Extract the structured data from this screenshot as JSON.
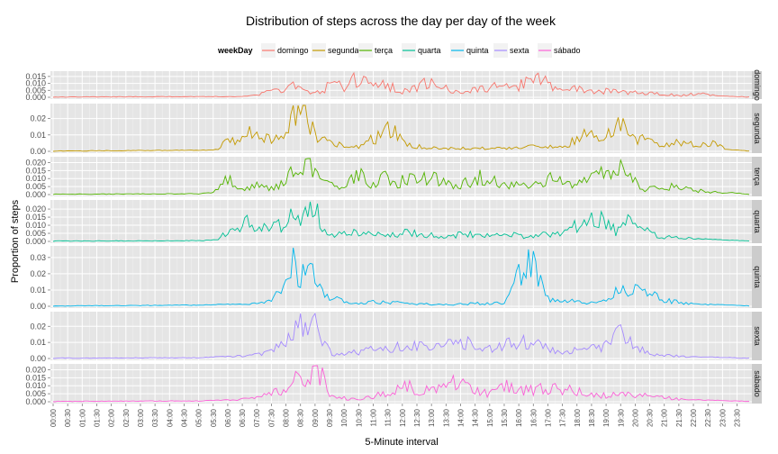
{
  "chart_data": {
    "type": "line",
    "title": "Distribution of steps across the day per day of the week",
    "xlabel": "5-Minute interval",
    "ylabel": "Proportion of steps",
    "legend": {
      "title": "weekDay",
      "placement": "top"
    },
    "xlim": [
      0,
      287
    ],
    "x_tick_labels": [
      "00:00",
      "00:30",
      "01:00",
      "01:30",
      "02:00",
      "02:30",
      "03:00",
      "03:30",
      "04:00",
      "04:30",
      "05:00",
      "05:30",
      "06:00",
      "06:30",
      "07:00",
      "07:30",
      "08:00",
      "08:30",
      "09:00",
      "09:30",
      "10:00",
      "10:30",
      "11:00",
      "11:30",
      "12:00",
      "12:30",
      "13:00",
      "13:30",
      "14:00",
      "14:30",
      "15:00",
      "15:30",
      "16:00",
      "16:30",
      "17:00",
      "17:30",
      "18:00",
      "18:30",
      "19:00",
      "19:30",
      "20:00",
      "20:30",
      "21:00",
      "21:30",
      "22:00",
      "22:30",
      "23:00",
      "23:30"
    ],
    "grid": true,
    "series": [
      {
        "name": "domingo",
        "color": "#F8766D",
        "ylim": [
          0,
          0.0175
        ],
        "y_ticks": [
          0,
          0.005,
          0.01,
          0.015
        ],
        "y_tick_labels": [
          "0.000",
          "0.005",
          "0.010",
          "0.015"
        ],
        "peaks": [
          [
            0,
            0
          ],
          [
            60,
            0.0003
          ],
          [
            78,
            0.0003
          ],
          [
            85,
            0.002
          ],
          [
            92,
            0.006
          ],
          [
            96,
            0.008
          ],
          [
            100,
            0.011
          ],
          [
            104,
            0.004
          ],
          [
            108,
            0.003
          ],
          [
            113,
            0.008
          ],
          [
            117,
            0.013
          ],
          [
            120,
            0.009
          ],
          [
            123,
            0.015
          ],
          [
            128,
            0.012
          ],
          [
            133,
            0.008
          ],
          [
            138,
            0.01
          ],
          [
            144,
            0.004
          ],
          [
            148,
            0.007
          ],
          [
            154,
            0.011
          ],
          [
            160,
            0.009
          ],
          [
            166,
            0.004
          ],
          [
            174,
            0.006
          ],
          [
            182,
            0.008
          ],
          [
            190,
            0.007
          ],
          [
            196,
            0.013
          ],
          [
            200,
            0.015
          ],
          [
            205,
            0.009
          ],
          [
            210,
            0.006
          ],
          [
            216,
            0.008
          ],
          [
            222,
            0.004
          ],
          [
            228,
            0.005
          ],
          [
            236,
            0.004
          ],
          [
            244,
            0.003
          ],
          [
            252,
            0.003
          ],
          [
            258,
            0.001
          ],
          [
            266,
            0.003
          ],
          [
            274,
            0.001
          ],
          [
            287,
            0
          ]
        ]
      },
      {
        "name": "segunda",
        "color": "#C49A00",
        "ylim": [
          0,
          0.028
        ],
        "y_ticks": [
          0,
          0.01,
          0.02
        ],
        "y_tick_labels": [
          "0.00",
          "0.01",
          "0.02"
        ],
        "peaks": [
          [
            0,
            0
          ],
          [
            62,
            0.0005
          ],
          [
            68,
            0.001
          ],
          [
            72,
            0.01
          ],
          [
            76,
            0.006
          ],
          [
            80,
            0.012
          ],
          [
            86,
            0.01
          ],
          [
            90,
            0.007
          ],
          [
            94,
            0.012
          ],
          [
            96,
            0.016
          ],
          [
            98,
            0.02
          ],
          [
            101,
            0.026
          ],
          [
            104,
            0.027
          ],
          [
            107,
            0.015
          ],
          [
            110,
            0.006
          ],
          [
            114,
            0.009
          ],
          [
            120,
            0.002
          ],
          [
            126,
            0.003
          ],
          [
            134,
            0.01
          ],
          [
            138,
            0.019
          ],
          [
            142,
            0.012
          ],
          [
            146,
            0.004
          ],
          [
            152,
            0.003
          ],
          [
            160,
            0.002
          ],
          [
            172,
            0.002
          ],
          [
            186,
            0.002
          ],
          [
            198,
            0.003
          ],
          [
            210,
            0.003
          ],
          [
            216,
            0.008
          ],
          [
            220,
            0.011
          ],
          [
            224,
            0.009
          ],
          [
            230,
            0.013
          ],
          [
            234,
            0.019
          ],
          [
            238,
            0.012
          ],
          [
            242,
            0.008
          ],
          [
            250,
            0.005
          ],
          [
            258,
            0.006
          ],
          [
            266,
            0.004
          ],
          [
            272,
            0.006
          ],
          [
            278,
            0.001
          ],
          [
            287,
            0
          ]
        ]
      },
      {
        "name": "terça",
        "color": "#53B400",
        "ylim": [
          0,
          0.0225
        ],
        "y_ticks": [
          0,
          0.005,
          0.01,
          0.015,
          0.02
        ],
        "y_tick_labels": [
          "0.000",
          "0.005",
          "0.010",
          "0.015",
          "0.020"
        ],
        "peaks": [
          [
            0,
            0
          ],
          [
            60,
            0.0003
          ],
          [
            66,
            0.001
          ],
          [
            70,
            0.01
          ],
          [
            74,
            0.01
          ],
          [
            78,
            0.004
          ],
          [
            84,
            0.006
          ],
          [
            90,
            0.004
          ],
          [
            96,
            0.01
          ],
          [
            100,
            0.018
          ],
          [
            104,
            0.02
          ],
          [
            107,
            0.022
          ],
          [
            110,
            0.012
          ],
          [
            114,
            0.006
          ],
          [
            120,
            0.004
          ],
          [
            126,
            0.015
          ],
          [
            130,
            0.005
          ],
          [
            138,
            0.013
          ],
          [
            142,
            0.008
          ],
          [
            150,
            0.014
          ],
          [
            158,
            0.01
          ],
          [
            166,
            0.006
          ],
          [
            176,
            0.012
          ],
          [
            184,
            0.008
          ],
          [
            196,
            0.006
          ],
          [
            206,
            0.011
          ],
          [
            214,
            0.006
          ],
          [
            222,
            0.011
          ],
          [
            228,
            0.014
          ],
          [
            234,
            0.017
          ],
          [
            238,
            0.01
          ],
          [
            244,
            0.004
          ],
          [
            252,
            0.006
          ],
          [
            260,
            0.004
          ],
          [
            270,
            0.002
          ],
          [
            280,
            0.001
          ],
          [
            287,
            0
          ]
        ]
      },
      {
        "name": "quarta",
        "color": "#00C094",
        "ylim": [
          0,
          0.0245
        ],
        "y_ticks": [
          0,
          0.005,
          0.01,
          0.015,
          0.02
        ],
        "y_tick_labels": [
          "0.000",
          "0.005",
          "0.010",
          "0.015",
          "0.020"
        ],
        "peaks": [
          [
            0,
            0
          ],
          [
            62,
            0.0003
          ],
          [
            68,
            0.001
          ],
          [
            72,
            0.008
          ],
          [
            76,
            0.011
          ],
          [
            82,
            0.013
          ],
          [
            88,
            0.008
          ],
          [
            94,
            0.012
          ],
          [
            98,
            0.015
          ],
          [
            102,
            0.016
          ],
          [
            105,
            0.023
          ],
          [
            108,
            0.022
          ],
          [
            111,
            0.012
          ],
          [
            114,
            0.004
          ],
          [
            120,
            0.007
          ],
          [
            128,
            0.006
          ],
          [
            136,
            0.005
          ],
          [
            146,
            0.006
          ],
          [
            160,
            0.004
          ],
          [
            176,
            0.005
          ],
          [
            186,
            0.005
          ],
          [
            196,
            0.003
          ],
          [
            206,
            0.006
          ],
          [
            214,
            0.009
          ],
          [
            218,
            0.012
          ],
          [
            224,
            0.017
          ],
          [
            228,
            0.016
          ],
          [
            232,
            0.006
          ],
          [
            238,
            0.015
          ],
          [
            244,
            0.008
          ],
          [
            250,
            0.003
          ],
          [
            262,
            0.002
          ],
          [
            272,
            0.001
          ],
          [
            287,
            0
          ]
        ]
      },
      {
        "name": "quinta",
        "color": "#00B6EB",
        "ylim": [
          0,
          0.036
        ],
        "y_ticks": [
          0,
          0.01,
          0.02,
          0.03
        ],
        "y_tick_labels": [
          "0.00",
          "0.01",
          "0.02",
          "0.03"
        ],
        "peaks": [
          [
            0,
            0
          ],
          [
            60,
            0.0005
          ],
          [
            70,
            0.001
          ],
          [
            80,
            0.001
          ],
          [
            88,
            0.003
          ],
          [
            94,
            0.01
          ],
          [
            97,
            0.033
          ],
          [
            100,
            0.028
          ],
          [
            104,
            0.02
          ],
          [
            107,
            0.03
          ],
          [
            110,
            0.012
          ],
          [
            114,
            0.006
          ],
          [
            122,
            0.002
          ],
          [
            132,
            0.003
          ],
          [
            146,
            0.002
          ],
          [
            160,
            0.001
          ],
          [
            176,
            0.002
          ],
          [
            186,
            0.002
          ],
          [
            194,
            0.025
          ],
          [
            197,
            0.033
          ],
          [
            200,
            0.022
          ],
          [
            204,
            0.005
          ],
          [
            212,
            0.004
          ],
          [
            220,
            0.002
          ],
          [
            228,
            0.004
          ],
          [
            234,
            0.012
          ],
          [
            240,
            0.01
          ],
          [
            246,
            0.008
          ],
          [
            252,
            0.004
          ],
          [
            262,
            0.002
          ],
          [
            272,
            0.001
          ],
          [
            287,
            0
          ]
        ]
      },
      {
        "name": "sexta",
        "color": "#A58AFF",
        "ylim": [
          0,
          0.028
        ],
        "y_ticks": [
          0,
          0.01,
          0.02
        ],
        "y_tick_labels": [
          "0.00",
          "0.01",
          "0.02"
        ],
        "peaks": [
          [
            0,
            0
          ],
          [
            60,
            0.0003
          ],
          [
            70,
            0.001
          ],
          [
            80,
            0.002
          ],
          [
            90,
            0.005
          ],
          [
            96,
            0.012
          ],
          [
            100,
            0.022
          ],
          [
            104,
            0.026
          ],
          [
            108,
            0.024
          ],
          [
            112,
            0.008
          ],
          [
            116,
            0.003
          ],
          [
            124,
            0.004
          ],
          [
            132,
            0.006
          ],
          [
            140,
            0.007
          ],
          [
            148,
            0.011
          ],
          [
            154,
            0.006
          ],
          [
            162,
            0.009
          ],
          [
            170,
            0.011
          ],
          [
            178,
            0.005
          ],
          [
            186,
            0.01
          ],
          [
            194,
            0.013
          ],
          [
            200,
            0.009
          ],
          [
            206,
            0.006
          ],
          [
            212,
            0.004
          ],
          [
            220,
            0.009
          ],
          [
            226,
            0.006
          ],
          [
            232,
            0.018
          ],
          [
            236,
            0.014
          ],
          [
            240,
            0.008
          ],
          [
            246,
            0.003
          ],
          [
            254,
            0.002
          ],
          [
            264,
            0.001
          ],
          [
            287,
            0
          ]
        ]
      },
      {
        "name": "sábado",
        "color": "#FB61D7",
        "ylim": [
          0,
          0.0225
        ],
        "y_ticks": [
          0,
          0.005,
          0.01,
          0.015,
          0.02
        ],
        "y_tick_labels": [
          "0.000",
          "0.005",
          "0.010",
          "0.015",
          "0.020"
        ],
        "peaks": [
          [
            0,
            0
          ],
          [
            60,
            0.0003
          ],
          [
            72,
            0.001
          ],
          [
            82,
            0.002
          ],
          [
            90,
            0.005
          ],
          [
            96,
            0.01
          ],
          [
            100,
            0.016
          ],
          [
            104,
            0.012
          ],
          [
            108,
            0.02
          ],
          [
            111,
            0.018
          ],
          [
            114,
            0.004
          ],
          [
            122,
            0.002
          ],
          [
            130,
            0.003
          ],
          [
            138,
            0.006
          ],
          [
            146,
            0.011
          ],
          [
            152,
            0.007
          ],
          [
            160,
            0.01
          ],
          [
            166,
            0.013
          ],
          [
            172,
            0.009
          ],
          [
            180,
            0.005
          ],
          [
            188,
            0.011
          ],
          [
            194,
            0.008
          ],
          [
            202,
            0.009
          ],
          [
            212,
            0.008
          ],
          [
            220,
            0.006
          ],
          [
            228,
            0.004
          ],
          [
            236,
            0.006
          ],
          [
            244,
            0.005
          ],
          [
            250,
            0.004
          ],
          [
            256,
            0.002
          ],
          [
            266,
            0.001
          ],
          [
            287,
            0
          ]
        ]
      }
    ]
  }
}
